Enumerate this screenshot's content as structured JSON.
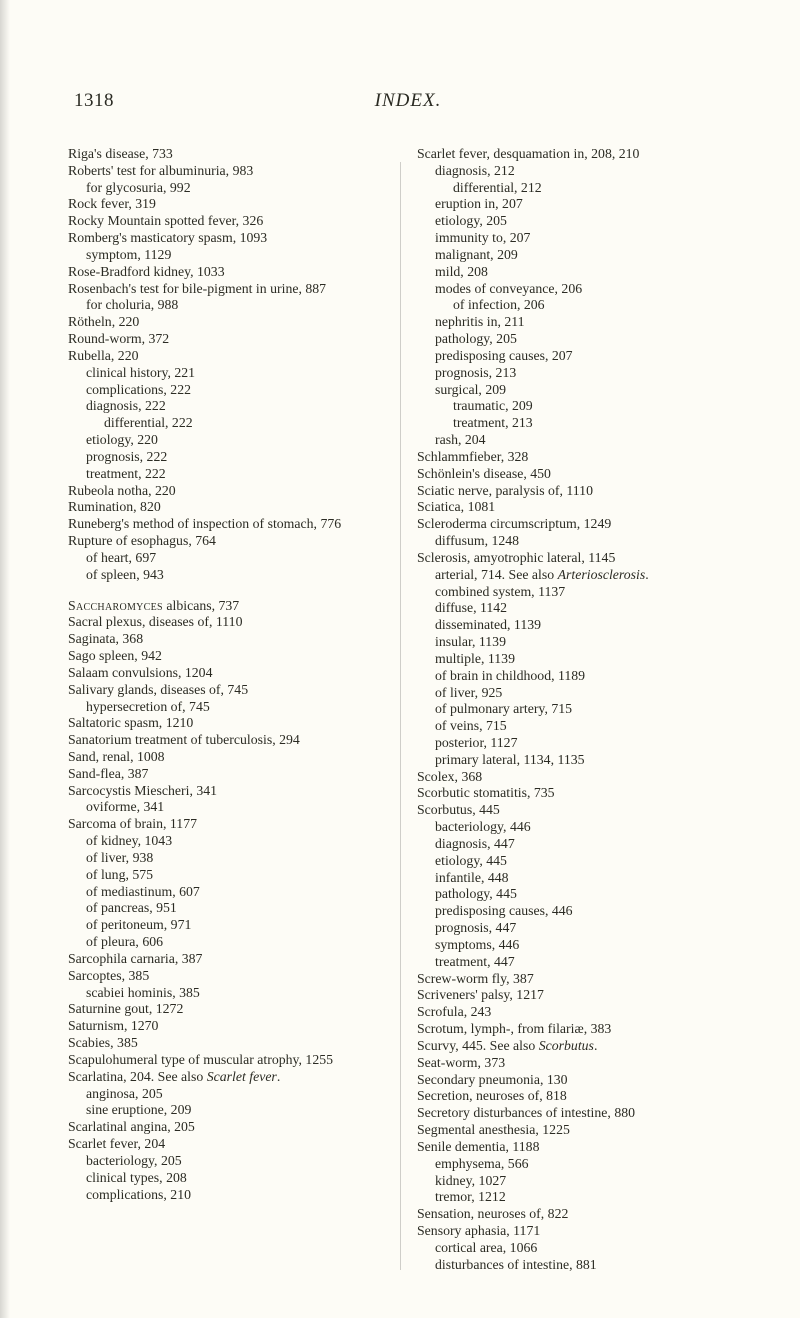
{
  "header": {
    "page_number": "1318",
    "title": "INDEX."
  },
  "left_column": [
    {
      "cls": "entry",
      "t": "Riga's disease, 733"
    },
    {
      "cls": "entry",
      "t": "Roberts' test for albuminuria, 983"
    },
    {
      "cls": "sub1",
      "t": "for glycosuria, 992"
    },
    {
      "cls": "entry",
      "t": "Rock fever, 319"
    },
    {
      "cls": "entry",
      "t": "Rocky Mountain spotted fever, 326"
    },
    {
      "cls": "entry",
      "t": "Romberg's masticatory spasm, 1093"
    },
    {
      "cls": "sub1",
      "t": "symptom, 1129"
    },
    {
      "cls": "entry",
      "t": "Rose-Bradford kidney, 1033"
    },
    {
      "cls": "entry",
      "t": "Rosenbach's test for bile-pigment in urine, 887"
    },
    {
      "cls": "sub1",
      "t": "for choluria, 988"
    },
    {
      "cls": "entry",
      "t": "Rötheln, 220"
    },
    {
      "cls": "entry",
      "t": "Round-worm, 372"
    },
    {
      "cls": "entry",
      "t": "Rubella, 220"
    },
    {
      "cls": "sub1",
      "t": "clinical history, 221"
    },
    {
      "cls": "sub1",
      "t": "complications, 222"
    },
    {
      "cls": "sub1",
      "t": "diagnosis, 222"
    },
    {
      "cls": "sub2",
      "t": "differential, 222"
    },
    {
      "cls": "sub1",
      "t": "etiology, 220"
    },
    {
      "cls": "sub1",
      "t": "prognosis, 222"
    },
    {
      "cls": "sub1",
      "t": "treatment, 222"
    },
    {
      "cls": "entry",
      "t": "Rubeola notha, 220"
    },
    {
      "cls": "entry",
      "t": "Rumination, 820"
    },
    {
      "cls": "entry",
      "t": "Runeberg's method of inspection of stomach, 776"
    },
    {
      "cls": "entry",
      "t": "Rupture of esophagus, 764"
    },
    {
      "cls": "sub1",
      "t": "of heart, 697"
    },
    {
      "cls": "sub1",
      "t": "of spleen, 943"
    },
    {
      "cls": "gap",
      "t": ""
    },
    {
      "cls": "entry",
      "html": "<span class='sc'>Saccharomyces</span> albicans, 737"
    },
    {
      "cls": "entry",
      "t": "Sacral plexus, diseases of, 1110"
    },
    {
      "cls": "entry",
      "t": "Saginata, 368"
    },
    {
      "cls": "entry",
      "t": "Sago spleen, 942"
    },
    {
      "cls": "entry",
      "t": "Salaam convulsions, 1204"
    },
    {
      "cls": "entry",
      "t": "Salivary glands, diseases of, 745"
    },
    {
      "cls": "sub1",
      "t": "hypersecretion of, 745"
    },
    {
      "cls": "entry",
      "t": "Saltatoric spasm, 1210"
    },
    {
      "cls": "entry",
      "t": "Sanatorium treatment of tuberculosis, 294"
    },
    {
      "cls": "entry",
      "t": "Sand, renal, 1008"
    },
    {
      "cls": "entry",
      "t": "Sand-flea, 387"
    },
    {
      "cls": "entry",
      "t": "Sarcocystis Miescheri, 341"
    },
    {
      "cls": "sub1",
      "t": "oviforme, 341"
    },
    {
      "cls": "entry",
      "t": "Sarcoma of brain, 1177"
    },
    {
      "cls": "sub1",
      "t": "of kidney, 1043"
    },
    {
      "cls": "sub1",
      "t": "of liver, 938"
    },
    {
      "cls": "sub1",
      "t": "of lung, 575"
    },
    {
      "cls": "sub1",
      "t": "of mediastinum, 607"
    },
    {
      "cls": "sub1",
      "t": "of pancreas, 951"
    },
    {
      "cls": "sub1",
      "t": "of peritoneum, 971"
    },
    {
      "cls": "sub1",
      "t": "of pleura, 606"
    },
    {
      "cls": "entry",
      "t": "Sarcophila carnaria, 387"
    },
    {
      "cls": "entry",
      "t": "Sarcoptes, 385"
    },
    {
      "cls": "sub1",
      "t": "scabiei hominis, 385"
    },
    {
      "cls": "entry",
      "t": "Saturnine gout, 1272"
    },
    {
      "cls": "entry",
      "t": "Saturnism, 1270"
    },
    {
      "cls": "entry",
      "t": "Scabies, 385"
    },
    {
      "cls": "entry",
      "t": "Scapulohumeral type of muscular atrophy, 1255"
    },
    {
      "cls": "entry",
      "html": "Scarlatina, 204. See also <i>Scarlet fever</i>."
    },
    {
      "cls": "sub1",
      "t": "anginosa, 205"
    },
    {
      "cls": "sub1",
      "t": "sine eruptione, 209"
    },
    {
      "cls": "entry",
      "t": "Scarlatinal angina, 205"
    },
    {
      "cls": "entry",
      "t": "Scarlet fever, 204"
    },
    {
      "cls": "sub1",
      "t": "bacteriology, 205"
    },
    {
      "cls": "sub1",
      "t": "clinical types, 208"
    },
    {
      "cls": "sub1",
      "t": "complications, 210"
    }
  ],
  "right_column": [
    {
      "cls": "entry",
      "t": "Scarlet fever, desquamation in, 208, 210"
    },
    {
      "cls": "sub1",
      "t": "diagnosis, 212"
    },
    {
      "cls": "sub2",
      "t": "differential, 212"
    },
    {
      "cls": "sub1",
      "t": "eruption in, 207"
    },
    {
      "cls": "sub1",
      "t": "etiology, 205"
    },
    {
      "cls": "sub1",
      "t": "immunity to, 207"
    },
    {
      "cls": "sub1",
      "t": "malignant, 209"
    },
    {
      "cls": "sub1",
      "t": "mild, 208"
    },
    {
      "cls": "sub1",
      "t": "modes of conveyance, 206"
    },
    {
      "cls": "sub2",
      "t": "of infection, 206"
    },
    {
      "cls": "sub1",
      "t": "nephritis in, 211"
    },
    {
      "cls": "sub1",
      "t": "pathology, 205"
    },
    {
      "cls": "sub1",
      "t": "predisposing causes, 207"
    },
    {
      "cls": "sub1",
      "t": "prognosis, 213"
    },
    {
      "cls": "sub1",
      "t": "surgical, 209"
    },
    {
      "cls": "sub2",
      "t": "traumatic, 209"
    },
    {
      "cls": "sub2",
      "t": "treatment, 213"
    },
    {
      "cls": "sub1",
      "t": "rash, 204"
    },
    {
      "cls": "entry",
      "t": "Schlammfieber, 328"
    },
    {
      "cls": "entry",
      "t": "Schönlein's disease, 450"
    },
    {
      "cls": "entry",
      "t": "Sciatic nerve, paralysis of, 1110"
    },
    {
      "cls": "entry",
      "t": "Sciatica, 1081"
    },
    {
      "cls": "entry",
      "t": "Scleroderma circumscriptum, 1249"
    },
    {
      "cls": "sub1",
      "t": "diffusum, 1248"
    },
    {
      "cls": "entry",
      "t": "Sclerosis, amyotrophic lateral, 1145"
    },
    {
      "cls": "sub1",
      "html": "arterial, 714. See also <i>Arteriosclerosis</i>."
    },
    {
      "cls": "sub1",
      "t": "combined system, 1137"
    },
    {
      "cls": "sub1",
      "t": "diffuse, 1142"
    },
    {
      "cls": "sub1",
      "t": "disseminated, 1139"
    },
    {
      "cls": "sub1",
      "t": "insular, 1139"
    },
    {
      "cls": "sub1",
      "t": "multiple, 1139"
    },
    {
      "cls": "sub1",
      "t": "of brain in childhood, 1189"
    },
    {
      "cls": "sub1",
      "t": "of liver, 925"
    },
    {
      "cls": "sub1",
      "t": "of pulmonary artery, 715"
    },
    {
      "cls": "sub1",
      "t": "of veins, 715"
    },
    {
      "cls": "sub1",
      "t": "posterior, 1127"
    },
    {
      "cls": "sub1",
      "t": "primary lateral, 1134, 1135"
    },
    {
      "cls": "entry",
      "t": "Scolex, 368"
    },
    {
      "cls": "entry",
      "t": "Scorbutic stomatitis, 735"
    },
    {
      "cls": "entry",
      "t": "Scorbutus, 445"
    },
    {
      "cls": "sub1",
      "t": "bacteriology, 446"
    },
    {
      "cls": "sub1",
      "t": "diagnosis, 447"
    },
    {
      "cls": "sub1",
      "t": "etiology, 445"
    },
    {
      "cls": "sub1",
      "t": "infantile, 448"
    },
    {
      "cls": "sub1",
      "t": "pathology, 445"
    },
    {
      "cls": "sub1",
      "t": "predisposing causes, 446"
    },
    {
      "cls": "sub1",
      "t": "prognosis, 447"
    },
    {
      "cls": "sub1",
      "t": "symptoms, 446"
    },
    {
      "cls": "sub1",
      "t": "treatment, 447"
    },
    {
      "cls": "entry",
      "t": "Screw-worm fly, 387"
    },
    {
      "cls": "entry",
      "t": "Scriveners' palsy, 1217"
    },
    {
      "cls": "entry",
      "t": "Scrofula, 243"
    },
    {
      "cls": "entry",
      "t": "Scrotum, lymph-, from filariæ, 383"
    },
    {
      "cls": "entry",
      "html": "Scurvy, 445. See also <i>Scorbutus</i>."
    },
    {
      "cls": "entry",
      "t": "Seat-worm, 373"
    },
    {
      "cls": "entry",
      "t": "Secondary pneumonia, 130"
    },
    {
      "cls": "entry",
      "t": "Secretion, neuroses of, 818"
    },
    {
      "cls": "entry",
      "t": "Secretory disturbances of intestine, 880"
    },
    {
      "cls": "entry",
      "t": "Segmental anesthesia, 1225"
    },
    {
      "cls": "entry",
      "t": "Senile dementia, 1188"
    },
    {
      "cls": "sub1",
      "t": "emphysema, 566"
    },
    {
      "cls": "sub1",
      "t": "kidney, 1027"
    },
    {
      "cls": "sub1",
      "t": "tremor, 1212"
    },
    {
      "cls": "entry",
      "t": "Sensation, neuroses of, 822"
    },
    {
      "cls": "entry",
      "t": "Sensory aphasia, 1171"
    },
    {
      "cls": "sub1",
      "t": "cortical area, 1066"
    },
    {
      "cls": "sub1",
      "t": "disturbances of intestine, 881"
    }
  ]
}
